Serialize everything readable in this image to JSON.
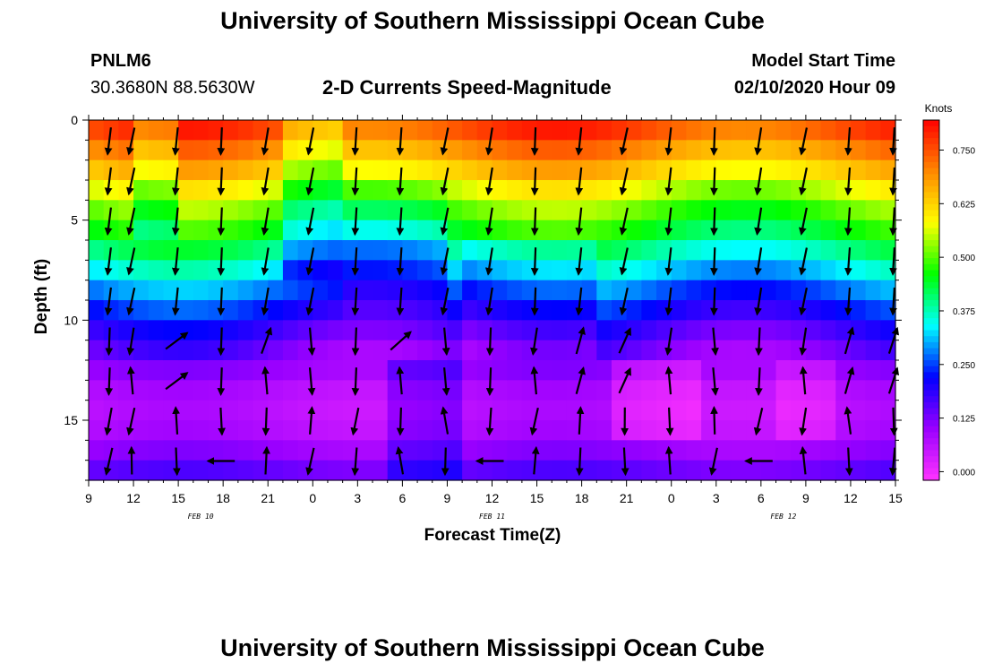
{
  "page": {
    "title_top": "University of Southern Mississippi Ocean Cube",
    "title_bottom": "University of Southern Mississippi Ocean Cube",
    "station_id": "PNLM6",
    "station_coords": "30.3680N 88.5630W",
    "chart_heading": "2-D Currents Speed-Magnitude",
    "model_start_label": "Model Start Time",
    "model_start_value": "02/10/2020 Hour 09"
  },
  "chart_data": {
    "type": "heatmap",
    "title": "2-D Currents Speed-Magnitude",
    "xlabel": "Forecast Time(Z)",
    "ylabel": "Depth (ft)",
    "x_tick_labels": [
      "9",
      "12",
      "15",
      "18",
      "21",
      "0",
      "3",
      "6",
      "9",
      "12",
      "15",
      "18",
      "21",
      "0",
      "3",
      "6",
      "9",
      "12",
      "15"
    ],
    "x_hours_range": [
      0,
      54
    ],
    "date_labels": [
      {
        "hour": 7.5,
        "text": "FEB 10"
      },
      {
        "hour": 27,
        "text": "FEB 11"
      },
      {
        "hour": 46.5,
        "text": "FEB 12"
      }
    ],
    "y_ticks": [
      0,
      5,
      10,
      15
    ],
    "ylim": [
      0,
      18
    ],
    "y_inverted": true,
    "colorbar": {
      "unit_label": "Knots",
      "range": [
        -0.02,
        0.82
      ],
      "ticks": [
        "0.000",
        "0.125",
        "0.250",
        "0.375",
        "0.500",
        "0.625",
        "0.750"
      ],
      "tick_values": [
        0,
        0.125,
        0.25,
        0.375,
        0.5,
        0.625,
        0.75
      ],
      "colors": [
        "#ff33ff",
        "#9a00ff",
        "#0000ff",
        "#00ffff",
        "#00ff00",
        "#ffff00",
        "#ff8800",
        "#ff0000"
      ]
    },
    "time_columns": 54,
    "depth_rows": 18,
    "speed_profile_by_depth": [
      0.75,
      0.69,
      0.63,
      0.56,
      0.5,
      0.45,
      0.39,
      0.33,
      0.27,
      0.22,
      0.17,
      0.13,
      0.1,
      0.07,
      0.06,
      0.07,
      0.1,
      0.14
    ],
    "vector_column_hours": [
      1.5,
      3,
      6,
      9,
      12,
      15,
      18,
      21,
      24,
      27,
      30,
      33,
      36,
      39,
      42,
      45,
      48,
      51,
      54
    ],
    "vector_depths_ft": [
      0.5,
      2.5,
      4.5,
      6.5,
      8.5,
      10.5,
      12.5,
      14.5,
      16.5
    ]
  }
}
